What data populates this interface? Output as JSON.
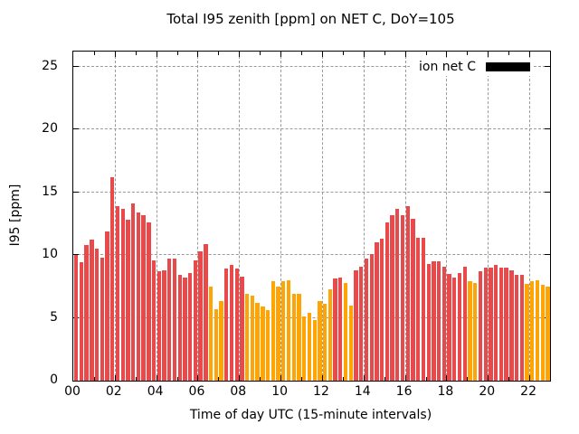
{
  "chart_data": {
    "type": "bar",
    "title": "Total I95 zenith [ppm] on NET C, DoY=105",
    "xlabel": "Time of day UTC (15-minute intervals)",
    "ylabel": "I95 [ppm]",
    "legend": {
      "label": "ion net C",
      "swatch_color": "#000000",
      "position": "top-right-inside"
    },
    "grid": true,
    "interval_minutes": 15,
    "x_hours_span": 23,
    "x_tick_step_hours": 2,
    "x_tick_labels": [
      "00",
      "02",
      "04",
      "06",
      "08",
      "10",
      "12",
      "14",
      "16",
      "18",
      "20",
      "22"
    ],
    "y_ticks": [
      0,
      5,
      10,
      15,
      20,
      25
    ],
    "ylim": [
      0,
      26.2
    ],
    "palette": {
      "r": "#e8494b",
      "o": "#ffa405"
    },
    "times": [
      "00:00",
      "00:15",
      "00:30",
      "00:45",
      "01:00",
      "01:15",
      "01:30",
      "01:45",
      "02:00",
      "02:15",
      "02:30",
      "02:45",
      "03:00",
      "03:15",
      "03:30",
      "03:45",
      "04:00",
      "04:15",
      "04:30",
      "04:45",
      "05:00",
      "05:15",
      "05:30",
      "05:45",
      "06:00",
      "06:15",
      "06:30",
      "06:45",
      "07:00",
      "07:15",
      "07:30",
      "07:45",
      "08:00",
      "08:15",
      "08:30",
      "08:45",
      "09:00",
      "09:15",
      "09:30",
      "09:45",
      "10:00",
      "10:15",
      "10:30",
      "10:45",
      "11:00",
      "11:15",
      "11:30",
      "11:45",
      "12:00",
      "12:15",
      "12:30",
      "12:45",
      "13:00",
      "13:15",
      "13:30",
      "13:45",
      "14:00",
      "14:15",
      "14:30",
      "14:45",
      "15:00",
      "15:15",
      "15:30",
      "15:45",
      "16:00",
      "16:15",
      "16:30",
      "16:45",
      "17:00",
      "17:15",
      "17:30",
      "17:45",
      "18:00",
      "18:15",
      "18:30",
      "18:45",
      "19:00",
      "19:15",
      "19:30",
      "19:45",
      "20:00",
      "20:15",
      "20:30",
      "20:45",
      "21:00",
      "21:15",
      "21:30",
      "21:45",
      "22:00",
      "22:15",
      "22:30",
      "22:45"
    ],
    "values": [
      10.0,
      9.4,
      10.8,
      11.2,
      10.5,
      9.8,
      11.9,
      16.2,
      13.9,
      13.7,
      12.8,
      14.1,
      13.4,
      13.2,
      12.6,
      9.6,
      8.7,
      8.8,
      9.7,
      9.7,
      8.4,
      8.2,
      8.6,
      9.6,
      10.3,
      10.9,
      7.5,
      5.7,
      6.3,
      8.9,
      9.2,
      8.9,
      8.3,
      6.9,
      6.8,
      6.2,
      5.9,
      5.6,
      7.9,
      7.5,
      7.9,
      8.0,
      6.9,
      6.9,
      5.1,
      5.4,
      4.8,
      6.3,
      6.1,
      7.3,
      8.1,
      8.2,
      7.8,
      6.0,
      8.8,
      9.1,
      9.7,
      10.1,
      11.0,
      11.3,
      12.6,
      13.2,
      13.7,
      13.2,
      13.9,
      12.9,
      11.4,
      11.4,
      9.3,
      9.5,
      9.5,
      9.1,
      8.5,
      8.2,
      8.6,
      9.1,
      7.9,
      7.8,
      8.7,
      9.0,
      9.0,
      9.2,
      9.0,
      9.0,
      8.8,
      8.4,
      8.4,
      7.7,
      7.9,
      8.0,
      7.6,
      7.5
    ],
    "colors": [
      "r",
      "r",
      "r",
      "r",
      "r",
      "r",
      "r",
      "r",
      "r",
      "r",
      "r",
      "r",
      "r",
      "r",
      "r",
      "r",
      "r",
      "r",
      "r",
      "r",
      "r",
      "r",
      "r",
      "r",
      "r",
      "r",
      "o",
      "o",
      "o",
      "r",
      "r",
      "r",
      "r",
      "o",
      "o",
      "o",
      "o",
      "o",
      "o",
      "o",
      "o",
      "o",
      "o",
      "o",
      "o",
      "o",
      "o",
      "o",
      "o",
      "o",
      "r",
      "r",
      "o",
      "o",
      "r",
      "r",
      "r",
      "r",
      "r",
      "r",
      "r",
      "r",
      "r",
      "r",
      "r",
      "r",
      "r",
      "r",
      "r",
      "r",
      "r",
      "r",
      "r",
      "r",
      "r",
      "r",
      "o",
      "o",
      "r",
      "r",
      "r",
      "r",
      "r",
      "r",
      "r",
      "r",
      "r",
      "o",
      "o",
      "o",
      "o",
      "o"
    ]
  }
}
